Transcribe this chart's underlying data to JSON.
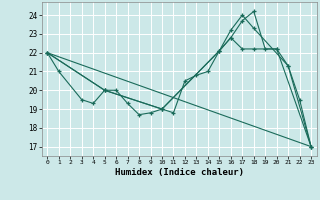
{
  "xlabel": "Humidex (Indice chaleur)",
  "bg_color": "#cce8e8",
  "line_color": "#1a6b5a",
  "grid_color": "#b0d4d4",
  "xlim": [
    -0.5,
    23.5
  ],
  "ylim": [
    16.5,
    24.7
  ],
  "xticks": [
    0,
    1,
    2,
    3,
    4,
    5,
    6,
    7,
    8,
    9,
    10,
    11,
    12,
    13,
    14,
    15,
    16,
    17,
    18,
    19,
    20,
    21,
    22,
    23
  ],
  "yticks": [
    17,
    18,
    19,
    20,
    21,
    22,
    23,
    24
  ],
  "lines": [
    {
      "x": [
        0,
        1,
        3,
        4,
        5,
        6,
        7,
        8,
        9,
        10,
        11,
        12,
        13,
        14,
        15,
        16,
        17,
        18,
        19,
        20,
        21,
        22,
        23
      ],
      "y": [
        22,
        21,
        19.5,
        19.3,
        20.0,
        20.0,
        19.3,
        18.7,
        18.8,
        19.0,
        18.8,
        20.5,
        20.8,
        21.0,
        22.1,
        22.8,
        23.7,
        24.2,
        22.2,
        22.2,
        21.3,
        19.5,
        17.0
      ],
      "markers": true
    },
    {
      "x": [
        0,
        5,
        10,
        15,
        16,
        17,
        18,
        21,
        23
      ],
      "y": [
        22,
        20.0,
        19.0,
        22.1,
        23.2,
        24.0,
        23.3,
        21.3,
        17.0
      ],
      "markers": true
    },
    {
      "x": [
        0,
        5,
        10,
        15,
        16,
        17,
        18,
        20,
        23
      ],
      "y": [
        22,
        20.0,
        19.0,
        22.1,
        22.8,
        22.2,
        22.2,
        22.2,
        17.0
      ],
      "markers": true
    },
    {
      "x": [
        0,
        23
      ],
      "y": [
        22,
        17
      ],
      "markers": false
    }
  ]
}
